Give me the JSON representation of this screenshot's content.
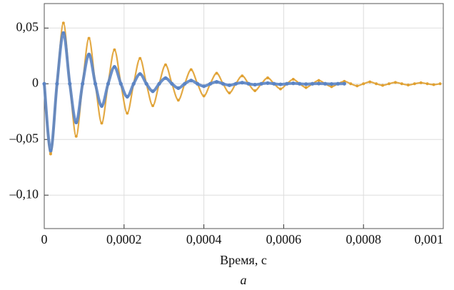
{
  "chart_data": {
    "type": "line",
    "x_label": "Время, с",
    "caption": "а",
    "x": [
      0,
      1.6e-05,
      3.2e-05,
      4.8e-05,
      6.4e-05,
      8e-05,
      9.6e-05,
      0.000112,
      0.000128,
      0.000144,
      0.00016,
      0.000176,
      0.000192,
      0.000208,
      0.000224,
      0.00024,
      0.000256,
      0.000272,
      0.000288,
      0.000304,
      0.00032,
      0.000336,
      0.000352,
      0.000368,
      0.000384,
      0.0004,
      0.000416,
      0.000432,
      0.000448,
      0.000464,
      0.00048,
      0.000496,
      0.000512,
      0.000528,
      0.000544,
      0.00056,
      0.000576,
      0.000592,
      0.000608,
      0.000624,
      0.00064,
      0.000656,
      0.000672,
      0.000688,
      0.000704,
      0.00072,
      0.000736,
      0.000752,
      0.000768,
      0.000784,
      0.0008,
      0.000816,
      0.000832,
      0.000848,
      0.000864,
      0.00088,
      0.000896,
      0.000912,
      0.000928,
      0.000944,
      0.00096,
      0.000976,
      0.000992
    ],
    "series": [
      {
        "color": "#e0a030",
        "values": [
          0,
          -0.063,
          0,
          0.0545,
          0,
          -0.0471,
          0,
          0.0408,
          0,
          -0.0353,
          0,
          0.0305,
          0,
          -0.0264,
          0,
          0.0228,
          0,
          -0.0197,
          0,
          0.017,
          0,
          -0.0147,
          0,
          0.0127,
          0,
          -0.011,
          0,
          0.0095,
          0,
          -0.0082,
          0,
          0.0071,
          0,
          -0.0062,
          0,
          0.0053,
          0,
          -0.0046,
          0,
          0.004,
          0,
          -0.0034,
          0,
          0.003,
          0,
          -0.0026,
          0,
          0.0022,
          0,
          -0.0019,
          0,
          0.0017,
          0,
          -0.0014,
          0,
          0.0012,
          0,
          -0.0011,
          0,
          0.0009,
          0,
          -0.0008,
          0
        ]
      },
      {
        "color": "#5b84c4",
        "values": [
          0,
          -0.06,
          0,
          0.0456,
          0,
          -0.0347,
          0,
          0.0263,
          0,
          -0.02,
          0,
          0.0152,
          0,
          -0.0116,
          0,
          0.0088,
          0,
          -0.0067,
          0,
          0.0051,
          0,
          -0.0039,
          0,
          0.0029,
          0,
          -0.0022,
          0,
          0.0017,
          0,
          -0.0013,
          0,
          0.001,
          0,
          -0.0008,
          0,
          0.0006,
          0,
          -0.0005,
          0,
          0.0004,
          0,
          -0.0003,
          0,
          0.0002,
          0,
          -0.0002,
          0,
          0.0001,
          null,
          null,
          null,
          null,
          null,
          null,
          null,
          null,
          null,
          null,
          null,
          null,
          null,
          null,
          null
        ]
      }
    ],
    "xlim": [
      0,
      0.001
    ],
    "ylim": [
      -0.13,
      0.072
    ],
    "xticks": [
      0,
      {
        "value": 0.0002,
        "label": "0,0002"
      },
      {
        "value": 0.0004,
        "label": "0,0004"
      },
      {
        "value": 0.0006,
        "label": "0,0006"
      },
      {
        "value": 0.0008,
        "label": "0,0008"
      },
      {
        "value": 0.001,
        "label": "0,001"
      }
    ],
    "yticks": [
      {
        "value": 0.05,
        "label": "0,05"
      },
      0,
      {
        "value": -0.05,
        "label": "–0,05"
      },
      {
        "value": -0.1,
        "label": "–0,10"
      }
    ],
    "grid": true
  }
}
